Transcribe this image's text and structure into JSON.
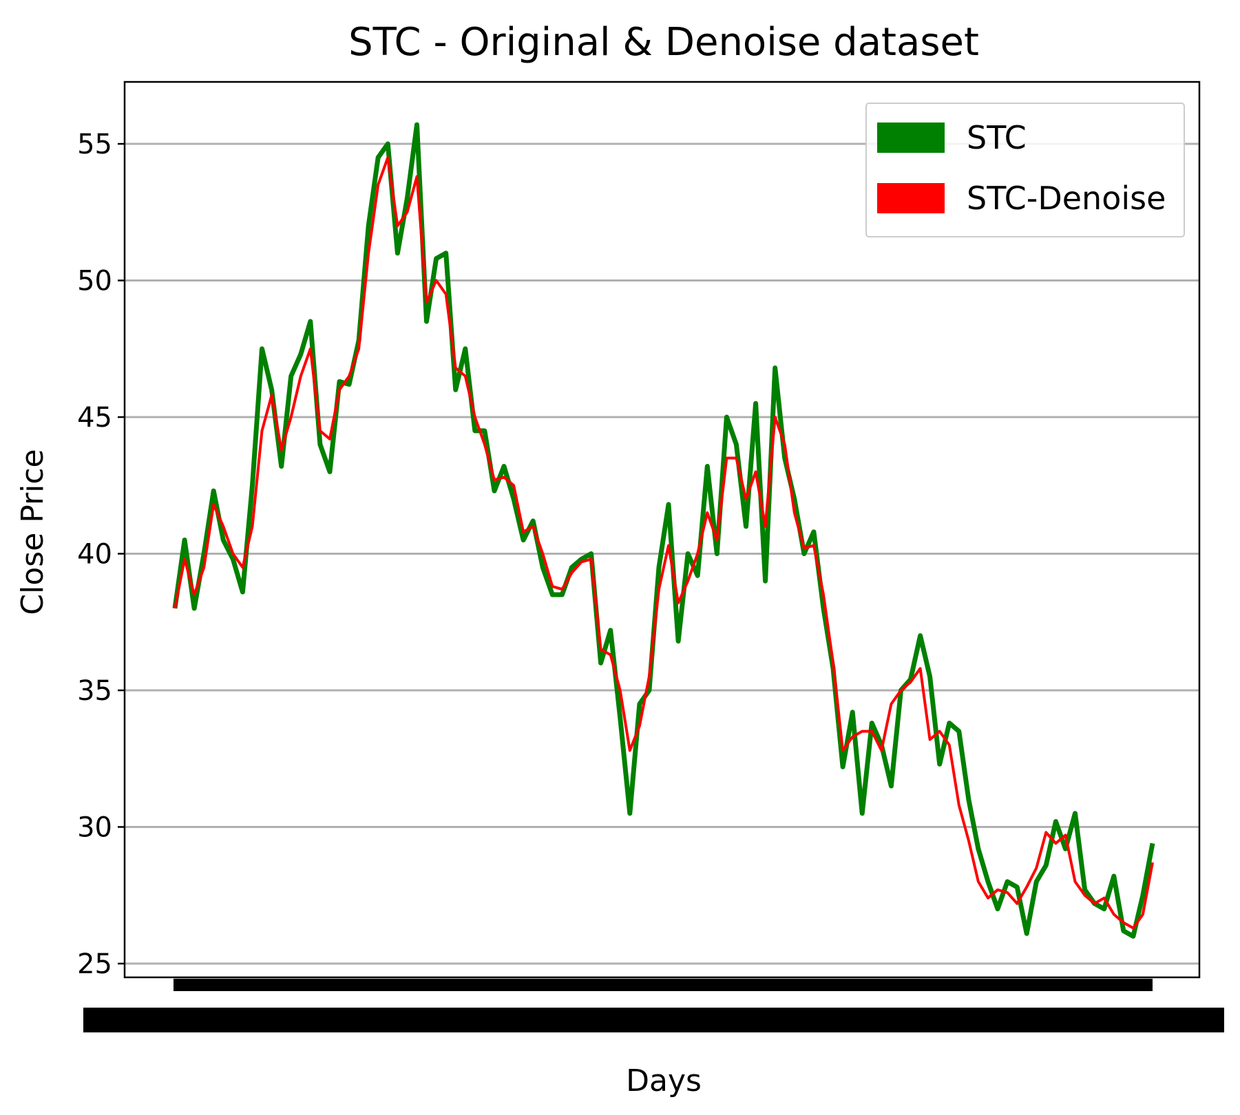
{
  "chart_data": {
    "type": "line",
    "title": "STC - Original & Denoise dataset",
    "xlabel": "Days",
    "ylabel": "Close Price",
    "ylim": [
      24.5,
      57
    ],
    "yticks": [
      25,
      30,
      35,
      40,
      45,
      50,
      55
    ],
    "grid": "horizontal",
    "legend_position": "top-right",
    "colors": {
      "STC": "#008000",
      "STC-Denoise": "#ff0000",
      "grid": "#b0b0b0"
    },
    "series": [
      {
        "name": "STC",
        "values": [
          38,
          40.5,
          38,
          40,
          42.3,
          40.5,
          39.8,
          38.6,
          42.5,
          47.5,
          46,
          43.2,
          46.5,
          47.3,
          48.5,
          44,
          43,
          46.3,
          46.2,
          47.8,
          52,
          54.5,
          55,
          51,
          53,
          55.7,
          48.5,
          50.8,
          51,
          46,
          47.5,
          44.5,
          44.5,
          42.3,
          43.2,
          42,
          40.5,
          41.2,
          39.5,
          38.5,
          38.5,
          39.5,
          39.8,
          40,
          36,
          37.2,
          34,
          30.5,
          34.5,
          35,
          39.5,
          41.8,
          36.8,
          40,
          39.2,
          43.2,
          40,
          45,
          44,
          41,
          45.5,
          39,
          46.8,
          43.5,
          42,
          40,
          40.8,
          38,
          35.8,
          32.2,
          34.2,
          30.5,
          33.8,
          33,
          31.5,
          35,
          35.4,
          37,
          35.5,
          32.3,
          33.8,
          33.5,
          31,
          29.2,
          28,
          27,
          28,
          27.8,
          26.1,
          28,
          28.6,
          30.2,
          29.2,
          30.5,
          27.7,
          27.2,
          27,
          28.2,
          26.2,
          26,
          27.5,
          29.4
        ]
      },
      {
        "name": "STC-Denoise",
        "values": [
          38,
          39.8,
          38.5,
          39.5,
          41.8,
          41,
          40,
          39.5,
          41,
          44.5,
          45.8,
          43.8,
          45,
          46.5,
          47.5,
          44.5,
          44.2,
          46,
          46.5,
          47.5,
          51,
          53.5,
          54.5,
          52,
          52.5,
          53.8,
          49.2,
          50,
          49.5,
          46.8,
          46.5,
          45,
          44,
          42.7,
          42.8,
          42.5,
          40.8,
          41,
          40,
          38.8,
          38.7,
          39.3,
          39.7,
          39.8,
          36.5,
          36.3,
          35,
          32.8,
          33.7,
          35.5,
          38.7,
          40.3,
          38.2,
          39,
          40,
          41.5,
          40.5,
          43.5,
          43.5,
          42,
          43,
          41,
          45,
          44,
          41.5,
          40.2,
          40.3,
          38.5,
          36,
          32.8,
          33.3,
          33.5,
          33.5,
          32.8,
          34.5,
          35,
          35.3,
          35.8,
          33.2,
          33.5,
          33,
          30.8,
          29.5,
          28,
          27.4,
          27.7,
          27.6,
          27.2,
          27.8,
          28.5,
          29.8,
          29.4,
          29.7,
          28,
          27.5,
          27.2,
          27.4,
          26.8,
          26.5,
          26.3,
          26.8,
          28.7
        ]
      }
    ]
  }
}
